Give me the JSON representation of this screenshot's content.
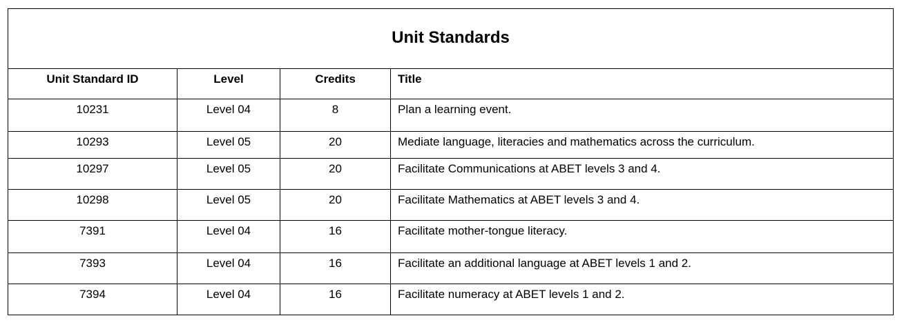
{
  "table": {
    "title": "Unit Standards",
    "headers": {
      "id": "Unit Standard ID",
      "level": "Level",
      "credits": "Credits",
      "title": "Title"
    },
    "rows": [
      {
        "id": "10231",
        "level": "Level 04",
        "credits": "8",
        "title": "Plan a learning event."
      },
      {
        "id": "10293",
        "level": "Level 05",
        "credits": "20",
        "title": "Mediate language, literacies and mathematics across the curriculum."
      },
      {
        "id": "10297",
        "level": "Level 05",
        "credits": "20",
        "title": "Facilitate Communications at ABET levels 3 and 4."
      },
      {
        "id": "10298",
        "level": "Level 05",
        "credits": "20",
        "title": "Facilitate Mathematics at ABET levels 3 and 4."
      },
      {
        "id": "7391",
        "level": "Level 04",
        "credits": "16",
        "title": "Facilitate mother-tongue literacy."
      },
      {
        "id": "7393",
        "level": "Level 04",
        "credits": "16",
        "title": "Facilitate an additional language at ABET levels 1 and 2."
      },
      {
        "id": "7394",
        "level": "Level 04",
        "credits": "16",
        "title": "Facilitate numeracy at ABET levels 1 and 2."
      }
    ]
  }
}
